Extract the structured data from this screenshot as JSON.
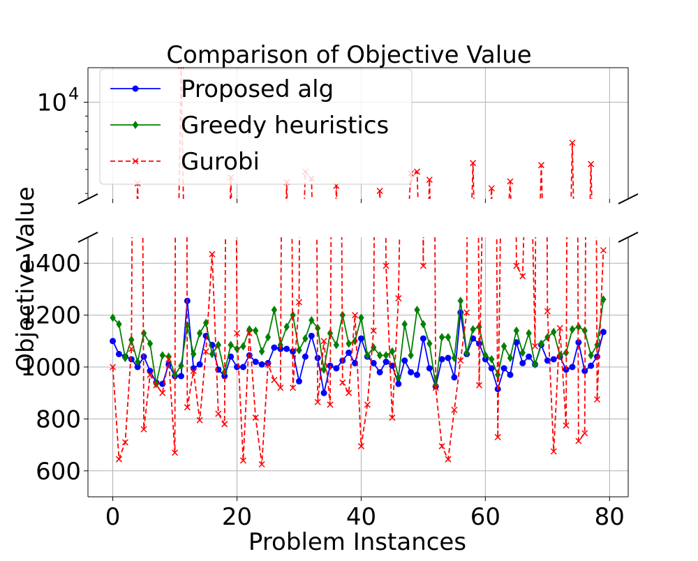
{
  "chart_data": {
    "type": "line",
    "title": "Comparison of Objective Value",
    "xlabel": "Problem Instances",
    "ylabel": "Objective Value",
    "broken_y_axis": true,
    "top_panel": {
      "yscale": "log",
      "ylim": [
        4800,
        13000
      ],
      "yticks": [
        {
          "value": 10000,
          "base": "10",
          "exp": "4"
        }
      ]
    },
    "bottom_panel": {
      "yscale": "linear",
      "ylim": [
        500,
        1500
      ],
      "yticks": [
        600,
        800,
        1000,
        1200,
        1400
      ]
    },
    "xlim": [
      -4,
      83
    ],
    "xticks": [
      0,
      20,
      40,
      60,
      80
    ],
    "grid": true,
    "legend": {
      "placement": "upper-left",
      "entries": [
        "Proposed alg",
        "Greedy heuristics",
        "Gurobi"
      ]
    },
    "x": [
      0,
      1,
      2,
      3,
      4,
      5,
      6,
      7,
      8,
      9,
      10,
      11,
      12,
      13,
      14,
      15,
      16,
      17,
      18,
      19,
      20,
      21,
      22,
      23,
      24,
      25,
      26,
      27,
      28,
      29,
      30,
      31,
      32,
      33,
      34,
      35,
      36,
      37,
      38,
      39,
      40,
      41,
      42,
      43,
      44,
      45,
      46,
      47,
      48,
      49,
      50,
      51,
      52,
      53,
      54,
      55,
      56,
      57,
      58,
      59,
      60,
      61,
      62,
      63,
      64,
      65,
      66,
      67,
      68,
      69,
      70,
      71,
      72,
      73,
      74,
      75,
      76,
      77,
      78,
      79
    ],
    "series": [
      {
        "name": "Proposed alg",
        "color": "#0000ff",
        "line_style": "solid",
        "marker": "circle",
        "values": [
          1100,
          1050,
          1040,
          1030,
          1000,
          1040,
          985,
          940,
          935,
          1010,
          965,
          965,
          1255,
          995,
          1010,
          1120,
          1085,
          990,
          965,
          1040,
          1000,
          1000,
          1045,
          1020,
          1010,
          1015,
          1075,
          1070,
          1070,
          1060,
          945,
          1040,
          1120,
          1035,
          900,
          1005,
          995,
          1025,
          1055,
          1015,
          1110,
          1040,
          1015,
          980,
          1020,
          1005,
          935,
          1025,
          980,
          970,
          1110,
          995,
          925,
          1030,
          1035,
          960,
          1210,
          1050,
          1110,
          1090,
          1030,
          995,
          915,
          995,
          970,
          1095,
          1015,
          1040,
          1010,
          1085,
          1025,
          1030,
          1040,
          990,
          1000,
          1095,
          985,
          1005,
          1040,
          1135
        ]
      },
      {
        "name": "Greedy heuristics",
        "color": "#008000",
        "line_style": "solid",
        "marker": "diamond",
        "values": [
          1190,
          1165,
          1035,
          1105,
          1020,
          1130,
          1090,
          935,
          1045,
          1040,
          970,
          1005,
          1160,
          1050,
          1130,
          1170,
          1050,
          1085,
          980,
          1085,
          1070,
          1080,
          1145,
          1140,
          1060,
          1115,
          1220,
          1085,
          1155,
          1200,
          1065,
          1110,
          1180,
          1150,
          990,
          1130,
          1085,
          1200,
          1090,
          1100,
          1190,
          1045,
          1075,
          1045,
          1045,
          1060,
          960,
          1165,
          1045,
          1220,
          1165,
          1090,
          930,
          1115,
          1115,
          1035,
          1255,
          1055,
          1145,
          1155,
          1045,
          1030,
          970,
          1080,
          1035,
          1140,
          1055,
          1130,
          1010,
          1090,
          1115,
          1135,
          1045,
          1055,
          1145,
          1155,
          1140,
          1045,
          1085,
          1260
        ]
      },
      {
        "name": "Gurobi",
        "color": "#ff0000",
        "line_style": "dashed",
        "marker": "x",
        "values": [
          1000,
          645,
          710,
          1070,
          5400,
          760,
          970,
          930,
          900,
          1030,
          670,
          13200,
          845,
          985,
          795,
          1060,
          1435,
          820,
          780,
          5650,
          1130,
          640,
          1130,
          805,
          625,
          1010,
          950,
          920,
          5450,
          920,
          1250,
          5900,
          5600,
          865,
          1100,
          855,
          5300,
          940,
          900,
          1200,
          695,
          855,
          1140,
          5100,
          1390,
          805,
          1265,
          2600,
          5820,
          5900,
          1390,
          5550,
          920,
          695,
          645,
          835,
          1025,
          1210,
          6300,
          930,
          2200,
          5200,
          730,
          2600,
          5480,
          1390,
          1350,
          2200,
          1080,
          6200,
          1215,
          675,
          1150,
          775,
          7350,
          715,
          745,
          6250,
          875,
          1450
        ]
      }
    ]
  }
}
